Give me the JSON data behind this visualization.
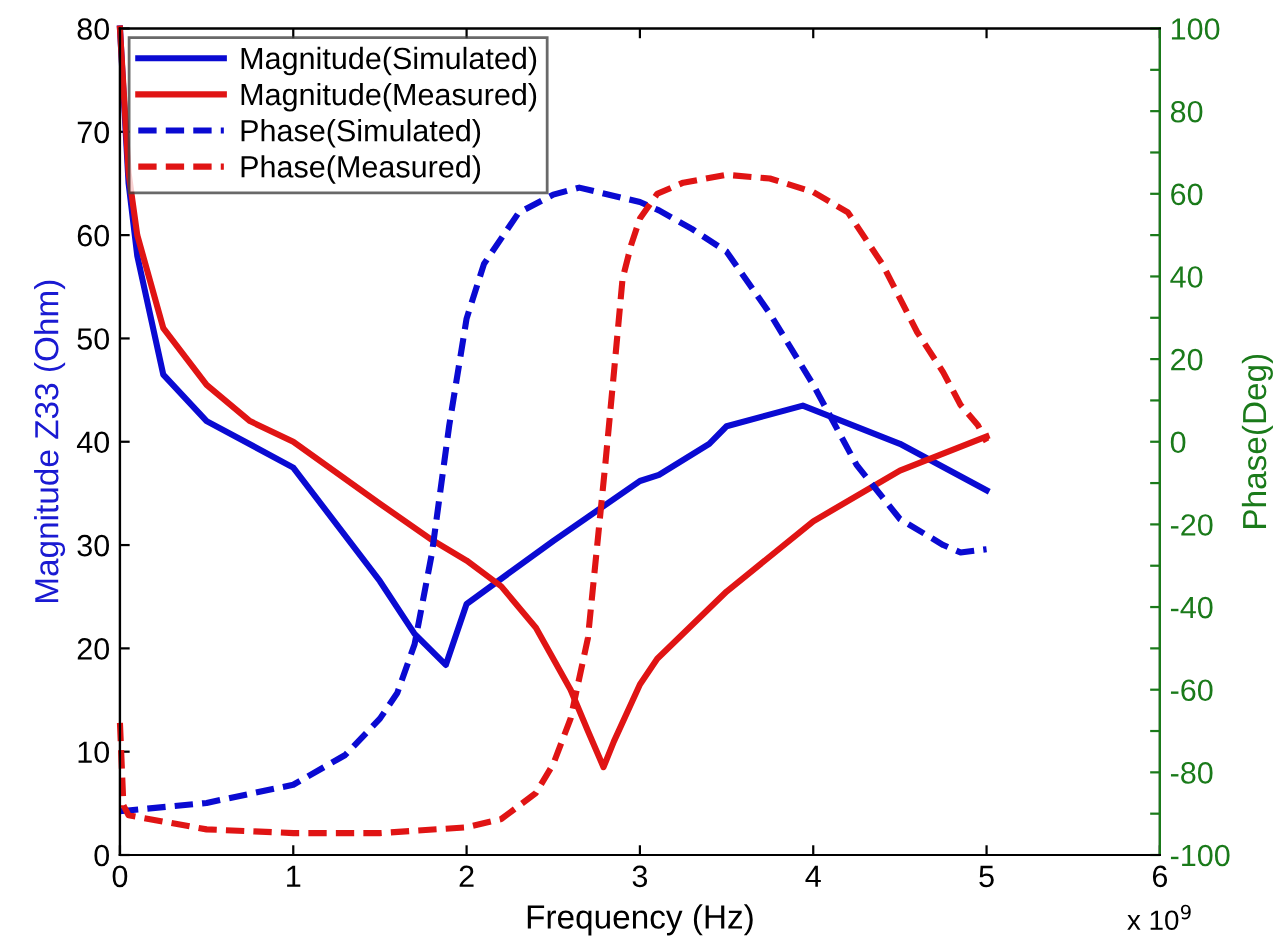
{
  "chart_data": {
    "type": "line",
    "xlabel": "Frequency (Hz)",
    "ylabel": "Magnitude Z33 (Ohm)",
    "y2label": "Phase(Deg)",
    "annotations": [
      "x 10$^{9}$"
    ],
    "xlim": [
      0,
      6
    ],
    "xticks": [
      0,
      1,
      2,
      3,
      4,
      5,
      6
    ],
    "ylim": [
      0,
      80
    ],
    "yticks": [
      0,
      10,
      20,
      30,
      40,
      50,
      60,
      70,
      80
    ],
    "y2lim": [
      -100,
      100
    ],
    "y2ticks": [
      -100,
      {
        "value": -90,
        "label": null
      },
      -80,
      {
        "value": -70,
        "label": null
      },
      -60,
      {
        "value": -50,
        "label": null
      },
      -40,
      {
        "value": -30,
        "label": null
      },
      -20,
      {
        "value": -10,
        "label": null
      },
      0,
      {
        "value": 10,
        "label": null
      },
      20,
      {
        "value": 30,
        "label": null
      },
      40,
      {
        "value": 50,
        "label": null
      },
      60,
      {
        "value": 70,
        "label": null
      },
      80,
      {
        "value": 90,
        "label": null
      },
      100
    ],
    "legend": "top left",
    "grid": false,
    "series": [
      {
        "name": "Magnitude(Simulated)",
        "color": "#0a0ad2",
        "line_style": "solid",
        "x": [
          0,
          0.05,
          0.1,
          0.25,
          0.5,
          1.0,
          1.5,
          1.7,
          1.88,
          2.0,
          2.5,
          2.75,
          3.0,
          3.11,
          3.4,
          3.5,
          3.94,
          4.5,
          5.0
        ],
        "values": [
          80,
          65,
          58,
          46.5,
          42,
          37.5,
          26.5,
          21.4,
          18.4,
          24.3,
          30.4,
          33.3,
          36.2,
          36.8,
          39.8,
          41.5,
          43.5,
          39.8,
          35.3
        ]
      },
      {
        "name": "Magnitude(Measured)",
        "color": "#e01414",
        "line_style": "solid",
        "x": [
          0,
          0.05,
          0.1,
          0.25,
          0.5,
          0.75,
          1.0,
          1.5,
          1.8,
          2.0,
          2.2,
          2.4,
          2.6,
          2.7,
          2.79,
          2.85,
          3.0,
          3.1,
          3.5,
          4.0,
          4.5,
          5.0
        ],
        "values": [
          80,
          66,
          60,
          51,
          45.5,
          42,
          40,
          34,
          30.5,
          28.5,
          26,
          22,
          16,
          12,
          8.5,
          11,
          16.5,
          19,
          25.5,
          32.3,
          37.2,
          40.5
        ]
      },
      {
        "name": "Phase(Simulated)",
        "color": "#0a0ad2",
        "line_style": "dashed",
        "axis": "y2",
        "x": [
          0,
          0.5,
          1.0,
          1.3,
          1.5,
          1.6,
          1.7,
          1.8,
          1.9,
          2.0,
          2.1,
          2.3,
          2.5,
          2.65,
          3.0,
          3.11,
          3.3,
          3.5,
          3.75,
          4.0,
          4.25,
          4.5,
          4.75,
          4.85,
          5.0
        ],
        "values": [
          -89.4,
          -87.4,
          -83,
          -75.8,
          -67,
          -60.8,
          -49,
          -27,
          4,
          29.8,
          43,
          55.4,
          59.8,
          61.5,
          58,
          56,
          51.5,
          46,
          31,
          13.8,
          -5.6,
          -18.7,
          -25,
          -26.8,
          -26
        ]
      },
      {
        "name": "Phase(Measured)",
        "color": "#e01414",
        "line_style": "dashed",
        "axis": "y2",
        "x": [
          0,
          0.02,
          0.05,
          0.5,
          1.0,
          1.5,
          2.0,
          2.2,
          2.4,
          2.5,
          2.6,
          2.7,
          2.8,
          2.85,
          2.9,
          2.95,
          3.0,
          3.1,
          3.25,
          3.5,
          3.75,
          4.0,
          4.2,
          4.4,
          4.6,
          4.75,
          4.85,
          4.95,
          5.0
        ],
        "values": [
          -68,
          -88,
          -90.4,
          -93.8,
          -94.7,
          -94.7,
          -93.3,
          -91.3,
          -85,
          -78,
          -67,
          -47.5,
          -5.6,
          16.7,
          39.5,
          47.7,
          54,
          60,
          62.7,
          64.6,
          63.7,
          60.4,
          55.5,
          42.9,
          26.5,
          16.8,
          8.9,
          4,
          0
        ]
      }
    ]
  }
}
